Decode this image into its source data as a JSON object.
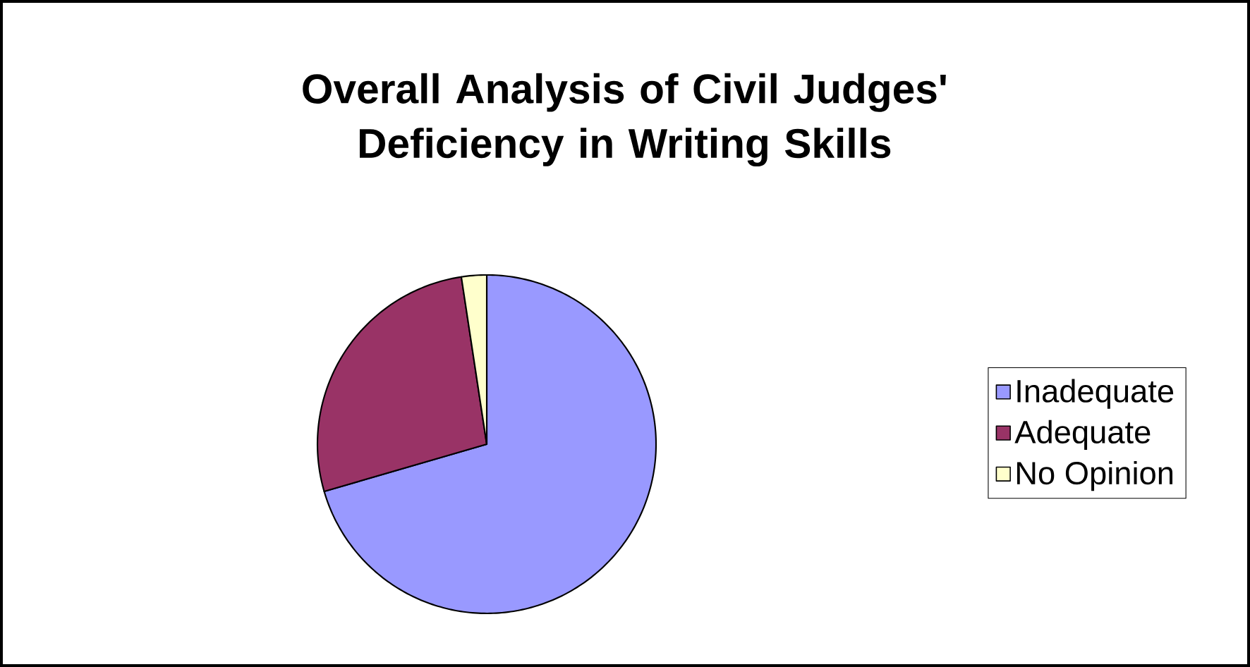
{
  "chart_data": {
    "type": "pie",
    "title": "Overall Analysis of Civil Judges' Deficiency in Writing Skills",
    "categories": [
      "Inadequate",
      "Adequate",
      "No Opinion"
    ],
    "values": [
      70.5,
      27.1,
      2.4
    ],
    "colors": [
      "#9999ff",
      "#993366",
      "#ffffcc"
    ],
    "legend": "right"
  }
}
